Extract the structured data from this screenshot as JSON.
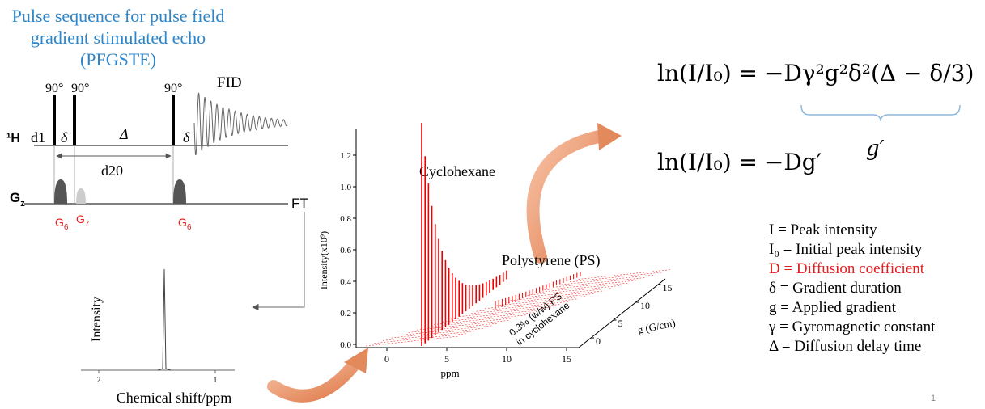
{
  "title": {
    "lines": [
      "Pulse sequence for pulse field",
      "gradient stimulated echo",
      "(PFGSTE)"
    ]
  },
  "pulse_sequence": {
    "pulses": [
      "90°",
      "90°",
      "90°"
    ],
    "fid": "FID",
    "nucleus": "¹H",
    "d1": "d1",
    "delta_1": "δ",
    "big_delta": "Δ",
    "delta_2": "δ",
    "d20": "d20",
    "gradient_axis": {
      "base": "G",
      "sub": "z"
    },
    "gradients": [
      {
        "base": "G",
        "sub": "6"
      },
      {
        "base": "G",
        "sub": "7"
      },
      {
        "base": "G",
        "sub": "6"
      }
    ],
    "ft": "FT"
  },
  "spectrum_1d": {
    "y_label": "Intensity",
    "x_ticks": [
      "2",
      "1"
    ],
    "x_label": "Chemical shift/ppm"
  },
  "spectrum_2d": {
    "y_label": "Intensity(x10⁹)",
    "y_ticks": [
      "0.0",
      "0.2",
      "0.4",
      "0.6",
      "0.8",
      "1.0",
      "1.2"
    ],
    "x_ticks": [
      "0",
      "5",
      "10",
      "15"
    ],
    "x_label": "ppm",
    "g_ticks": [
      "0",
      "5",
      "10",
      "15"
    ],
    "g_label": "g (G/cm)",
    "peak_1": "Cyclohexane",
    "peak_2": "Polystyrene (PS)",
    "sample": [
      "0.3% (w/w) PS",
      "in cyclohexane"
    ]
  },
  "equations": {
    "eq1": "ln(I/I₀) =  −Dγ²g²δ²(Δ − δ/3)",
    "g_prime": "g′",
    "eq2": "ln(I/I₀) =  −Dg′"
  },
  "definitions": [
    "I  = Peak intensity",
    "I₀ = Initial peak intensity",
    "D = Diffusion coefficient",
    "δ  = Gradient duration",
    "g  = Applied gradient",
    "γ  = Gyromagnetic constant",
    "Δ  = Diffusion delay time"
  ],
  "page_number": "1"
}
